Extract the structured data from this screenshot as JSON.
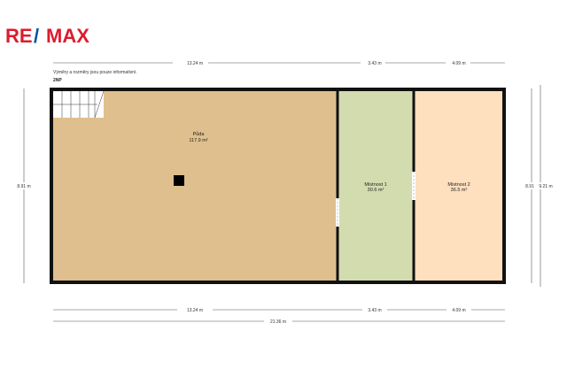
{
  "logo": {
    "text_left": "RE",
    "text_slash": "/",
    "text_right": "MAX",
    "red": "#dc1c2e",
    "blue": "#0054a4"
  },
  "note": "Výměry a rozměry jsou pouze informativní.",
  "floor": "2NP",
  "rooms": [
    {
      "name": "Půda",
      "area": "117.9 m²",
      "color": "#dfbf8d"
    },
    {
      "name": "Místnost 1",
      "area": "30.6 m²",
      "color": "#d3dcaf"
    },
    {
      "name": "Místnost 2",
      "area": "36.5 m²",
      "color": "#fedfbe"
    }
  ],
  "dimensions": {
    "top": [
      "13.24 m",
      "3.43 m",
      "4.09 m"
    ],
    "bottom": [
      "13.24 m",
      "3.43 m",
      "4.09 m"
    ],
    "total": "21.36 m",
    "left": "8.91 m",
    "right_inner": "8.91",
    "right_outer": "9.21 m"
  }
}
